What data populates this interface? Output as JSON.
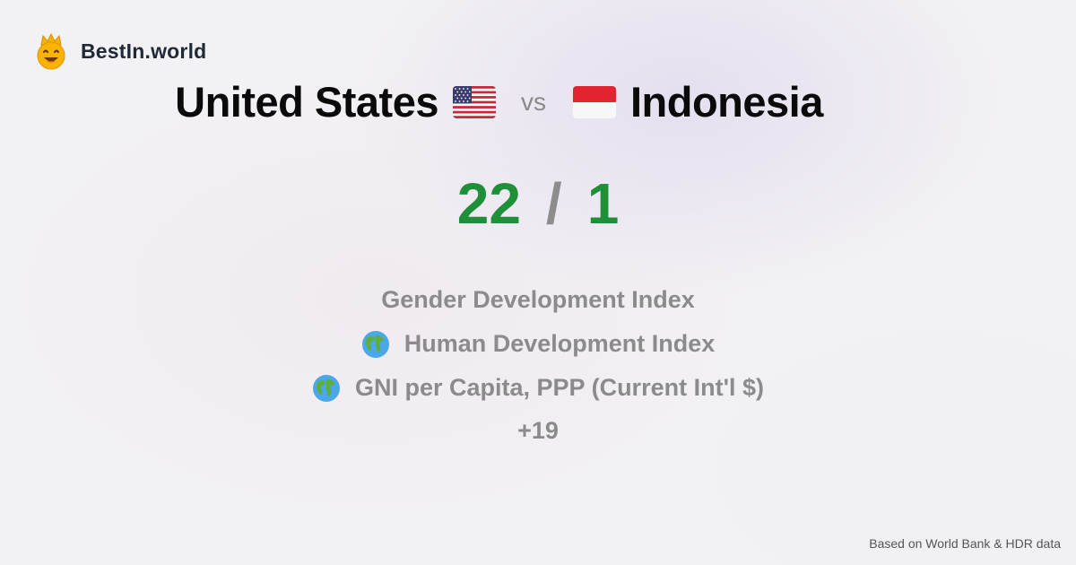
{
  "brand": {
    "name": "BestIn.world",
    "icon": "crowned-smiley-icon"
  },
  "comparison": {
    "left_country": "United States",
    "left_flag_icon": "us-flag-icon",
    "vs_label": "vs",
    "right_country": "Indonesia",
    "right_flag_icon": "indonesia-flag-icon"
  },
  "score": {
    "left": "22",
    "separator": "/",
    "right": "1",
    "color": "#1f8f3a"
  },
  "metrics": [
    {
      "label": "Gender Development Index",
      "icon": null
    },
    {
      "label": "Human Development Index",
      "icon": "globe-icon"
    },
    {
      "label": "GNI per Capita, PPP (Current Int'l $)",
      "icon": "globe-icon"
    }
  ],
  "more_count": "+19",
  "footnote": "Based on World Bank & HDR data"
}
